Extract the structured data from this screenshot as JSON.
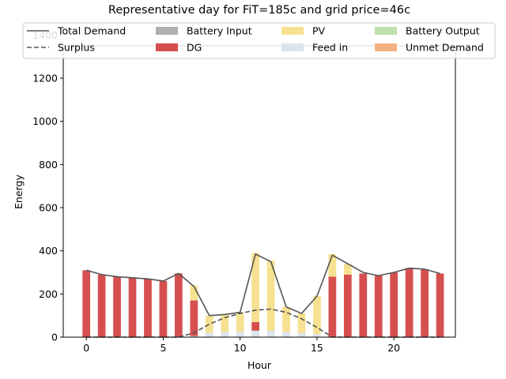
{
  "chart_data": {
    "type": "bar",
    "title": "Representative day for FiT=185c and grid price=46c",
    "xlabel": "Hour",
    "ylabel": "Energy",
    "xlim": [
      -1.5,
      24.0
    ],
    "ylim": [
      0,
      1350
    ],
    "xticks": [
      0,
      5,
      10,
      15,
      20
    ],
    "yticks": [
      0,
      200,
      400,
      600,
      800,
      1000,
      1200,
      1400
    ],
    "legend_position": "top",
    "x": [
      0,
      1,
      2,
      3,
      4,
      5,
      6,
      7,
      8,
      9,
      10,
      11,
      12,
      13,
      14,
      15,
      16,
      17,
      18,
      19,
      20,
      21,
      22,
      23
    ],
    "series": [
      {
        "name": "Battery Input",
        "kind": "bar",
        "color": "#b0b0b0",
        "values": [
          0,
          0,
          0,
          0,
          0,
          0,
          0,
          0,
          0,
          0,
          0,
          0,
          0,
          0,
          0,
          0,
          0,
          0,
          0,
          0,
          0,
          0,
          0,
          0
        ]
      },
      {
        "name": "Feed in",
        "kind": "bar",
        "color": "#dce3ec",
        "values": [
          0,
          0,
          0,
          0,
          0,
          0,
          0,
          5,
          20,
          25,
          25,
          30,
          30,
          25,
          20,
          15,
          0,
          0,
          0,
          0,
          0,
          0,
          0,
          0
        ]
      },
      {
        "name": "DG",
        "kind": "bar",
        "color": "#d64f4f",
        "values": [
          310,
          290,
          280,
          275,
          270,
          260,
          295,
          165,
          0,
          0,
          0,
          40,
          0,
          0,
          0,
          0,
          280,
          290,
          295,
          285,
          300,
          320,
          315,
          295
        ]
      },
      {
        "name": "PV",
        "kind": "bar",
        "color": "#f6e191",
        "values": [
          0,
          0,
          0,
          0,
          0,
          0,
          0,
          70,
          80,
          80,
          90,
          320,
          325,
          115,
          90,
          175,
          105,
          50,
          0,
          0,
          0,
          0,
          0,
          0
        ]
      },
      {
        "name": "Battery Output",
        "kind": "bar",
        "color": "#bfe0b0",
        "values": [
          0,
          0,
          0,
          0,
          0,
          0,
          0,
          0,
          0,
          0,
          0,
          0,
          0,
          0,
          0,
          0,
          0,
          0,
          0,
          0,
          0,
          0,
          0,
          0
        ]
      },
      {
        "name": "Unmet Demand",
        "kind": "bar",
        "color": "#f4b183",
        "values": [
          0,
          0,
          0,
          0,
          0,
          0,
          0,
          0,
          0,
          0,
          0,
          0,
          0,
          0,
          0,
          0,
          0,
          0,
          0,
          0,
          0,
          0,
          0,
          0
        ]
      },
      {
        "name": "Total Demand",
        "kind": "line",
        "color": "#555555",
        "dash": "solid",
        "values": [
          310,
          290,
          280,
          275,
          270,
          260,
          295,
          235,
          100,
          105,
          115,
          385,
          350,
          140,
          110,
          190,
          380,
          340,
          300,
          285,
          300,
          320,
          315,
          295
        ]
      },
      {
        "name": "Surplus",
        "kind": "line",
        "color": "#555555",
        "dash": "dashed",
        "values": [
          0,
          0,
          0,
          0,
          0,
          0,
          0,
          20,
          60,
          90,
          110,
          125,
          130,
          115,
          85,
          45,
          0,
          0,
          0,
          0,
          0,
          0,
          0,
          0
        ]
      }
    ],
    "legend_order": [
      "Total Demand",
      "Battery Input",
      "PV",
      "Battery Output",
      "Surplus",
      "DG",
      "Feed in",
      "Unmet Demand"
    ]
  }
}
